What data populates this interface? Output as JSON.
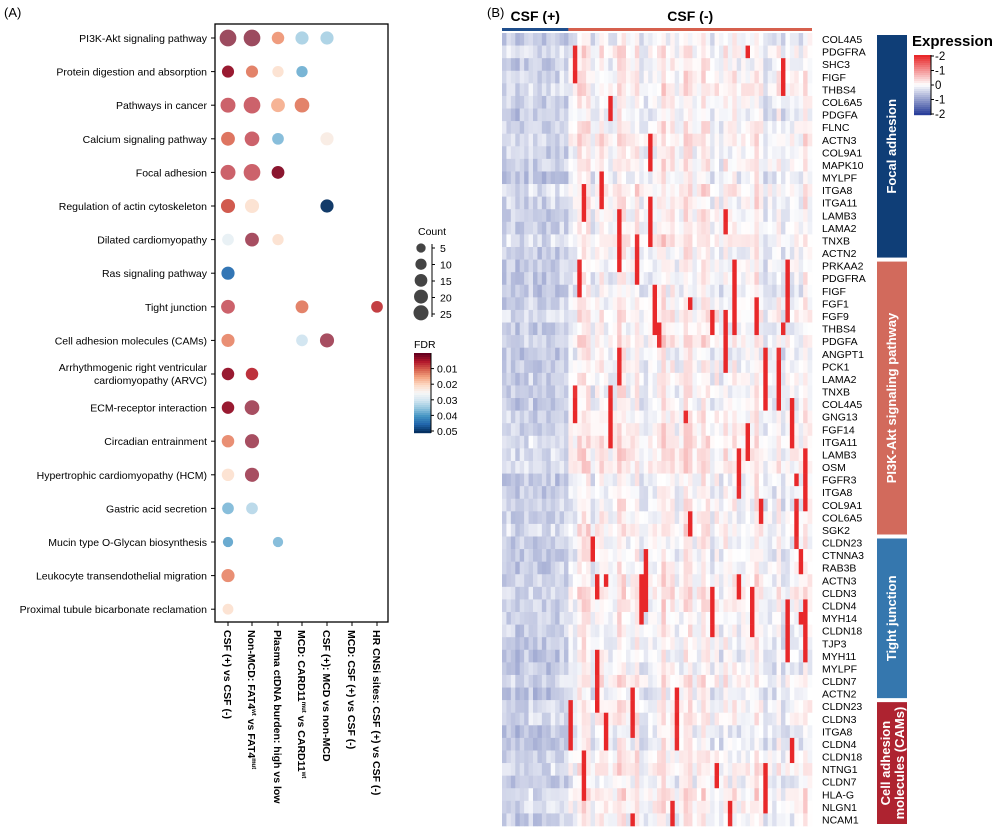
{
  "panels": {
    "a_label": "(A)",
    "b_label": "(B)"
  },
  "chart_data": [
    {
      "type": "scatter",
      "subtype": "dot-plot",
      "pathways": [
        "PI3K-Akt signaling pathway",
        "Protein digestion and absorption",
        "Pathways in cancer",
        "Calcium signaling pathway",
        "Focal adhesion",
        "Regulation of actin cytoskeleton",
        "Dilated cardiomyopathy",
        "Ras signaling pathway",
        "Tight junction",
        "Cell adhesion molecules (CAMs)",
        "Arrhythmogenic right ventricular|cardiomyopathy (ARVC)",
        "ECM-receptor interaction",
        "Circadian entrainment",
        "Hypertrophic cardiomyopathy (HCM)",
        "Gastric acid secretion",
        "Mucin type O-Glycan biosynthesis",
        "Leukocyte transendothelial migration",
        "Proximal tubule bicarbonate reclamation"
      ],
      "comparisons": [
        {
          "text": "CSF (+) vs CSF (-)"
        },
        {
          "text": "Non-MCD: FAT4",
          "sup1": "wt",
          "mid": " vs FAT4",
          "sup2": "mut"
        },
        {
          "text": "Plasma ctDNA burden: high vs low"
        },
        {
          "text": "MCD: CARD11",
          "sup1": "mut",
          "mid": " vs CARD11",
          "sup2": "wt"
        },
        {
          "text": "CSF (+): MCD vs non-MCD"
        },
        {
          "text": "MCD: CSF (+) vs CSF (-)"
        },
        {
          "text": "HR CNSi sites: CSF (+) vs CSF (-)"
        }
      ],
      "points": [
        {
          "row": 0,
          "col": 0,
          "count": 25,
          "fdr": 0.001
        },
        {
          "row": 0,
          "col": 1,
          "count": 25,
          "fdr": 0.001
        },
        {
          "row": 0,
          "col": 2,
          "count": 10,
          "fdr": 0.014
        },
        {
          "row": 0,
          "col": 3,
          "count": 12,
          "fdr": 0.033
        },
        {
          "row": 0,
          "col": 4,
          "count": 12,
          "fdr": 0.033
        },
        {
          "row": 1,
          "col": 0,
          "count": 9,
          "fdr": 0.003
        },
        {
          "row": 1,
          "col": 1,
          "count": 9,
          "fdr": 0.012
        },
        {
          "row": 1,
          "col": 2,
          "count": 7,
          "fdr": 0.021
        },
        {
          "row": 1,
          "col": 3,
          "count": 7,
          "fdr": 0.037
        },
        {
          "row": 2,
          "col": 0,
          "count": 18,
          "fdr": 0.006
        },
        {
          "row": 2,
          "col": 1,
          "count": 25,
          "fdr": 0.006
        },
        {
          "row": 2,
          "col": 2,
          "count": 14,
          "fdr": 0.016
        },
        {
          "row": 2,
          "col": 3,
          "count": 17,
          "fdr": 0.012
        },
        {
          "row": 3,
          "col": 0,
          "count": 14,
          "fdr": 0.011
        },
        {
          "row": 3,
          "col": 1,
          "count": 17,
          "fdr": 0.006
        },
        {
          "row": 3,
          "col": 2,
          "count": 8,
          "fdr": 0.036
        },
        {
          "row": 3,
          "col": 4,
          "count": 12,
          "fdr": 0.023
        },
        {
          "row": 4,
          "col": 0,
          "count": 18,
          "fdr": 0.006
        },
        {
          "row": 4,
          "col": 1,
          "count": 25,
          "fdr": 0.006
        },
        {
          "row": 4,
          "col": 2,
          "count": 11,
          "fdr": 0.002
        },
        {
          "row": 5,
          "col": 0,
          "count": 15,
          "fdr": 0.009
        },
        {
          "row": 5,
          "col": 1,
          "count": 15,
          "fdr": 0.021
        },
        {
          "row": 5,
          "col": 4,
          "count": 12,
          "fdr": 0.05
        },
        {
          "row": 6,
          "col": 0,
          "count": 8,
          "fdr": 0.027
        },
        {
          "row": 6,
          "col": 1,
          "count": 14,
          "fdr": 0.002
        },
        {
          "row": 6,
          "col": 2,
          "count": 7,
          "fdr": 0.021
        },
        {
          "row": 7,
          "col": 0,
          "count": 12,
          "fdr": 0.044
        },
        {
          "row": 8,
          "col": 0,
          "count": 14,
          "fdr": 0.006
        },
        {
          "row": 8,
          "col": 3,
          "count": 11,
          "fdr": 0.012
        },
        {
          "row": 8,
          "col": 6,
          "count": 8,
          "fdr": 0.007
        },
        {
          "row": 9,
          "col": 0,
          "count": 12,
          "fdr": 0.013
        },
        {
          "row": 9,
          "col": 3,
          "count": 8,
          "fdr": 0.03
        },
        {
          "row": 9,
          "col": 4,
          "count": 15,
          "fdr": 0.002
        },
        {
          "row": 10,
          "col": 0,
          "count": 10,
          "fdr": 0.003
        },
        {
          "row": 10,
          "col": 1,
          "count": 10,
          "fdr": 0.006
        },
        {
          "row": 11,
          "col": 0,
          "count": 10,
          "fdr": 0.003
        },
        {
          "row": 11,
          "col": 1,
          "count": 17,
          "fdr": 0.002
        },
        {
          "row": 12,
          "col": 0,
          "count": 10,
          "fdr": 0.013
        },
        {
          "row": 12,
          "col": 1,
          "count": 15,
          "fdr": 0.002
        },
        {
          "row": 13,
          "col": 0,
          "count": 10,
          "fdr": 0.021
        },
        {
          "row": 13,
          "col": 1,
          "count": 15,
          "fdr": 0.002
        },
        {
          "row": 14,
          "col": 0,
          "count": 8,
          "fdr": 0.036
        },
        {
          "row": 14,
          "col": 1,
          "count": 8,
          "fdr": 0.032
        },
        {
          "row": 15,
          "col": 0,
          "count": 5,
          "fdr": 0.038
        },
        {
          "row": 15,
          "col": 2,
          "count": 5,
          "fdr": 0.036
        },
        {
          "row": 16,
          "col": 0,
          "count": 12,
          "fdr": 0.013
        },
        {
          "row": 17,
          "col": 0,
          "count": 6,
          "fdr": 0.021
        }
      ],
      "size_legend": {
        "title": "Count",
        "values": [
          5,
          10,
          15,
          20,
          25
        ],
        "labels": [
          "5",
          "10",
          "15",
          "20",
          "25"
        ]
      },
      "color_legend": {
        "title": "FDR",
        "range": [
          0,
          0.05
        ],
        "ticks": [
          0.01,
          0.02,
          0.03,
          0.04,
          0.05
        ],
        "labels": [
          "0.01",
          "0.02",
          "0.03",
          "0.04",
          "0.05"
        ],
        "low_color": "#67001f",
        "mid_color": "#f7f7f7",
        "high_color": "#053061"
      }
    },
    {
      "type": "heatmap",
      "column_groups": [
        {
          "label": "CSF (+)",
          "color": "#1f4e8c"
        },
        {
          "label": "CSF (-)",
          "color": "#d6604d"
        }
      ],
      "row_groups": [
        {
          "label": "Focal adhesion",
          "color": "#0f3e77",
          "genes": [
            "COL4A5",
            "PDGFRA",
            "SHC3",
            "FIGF",
            "THBS4",
            "COL6A5",
            "PDGFA",
            "FLNC",
            "ACTN3",
            "COL9A1",
            "MAPK10",
            "MYLPF",
            "ITGA8",
            "ITGA11",
            "LAMB3",
            "LAMA2",
            "TNXB",
            "ACTN2"
          ]
        },
        {
          "label": "PI3K-Akt signaling pathway",
          "color": "#d26a5c",
          "genes": [
            "PRKAA2",
            "PDGFRA",
            "FIGF",
            "FGF1",
            "FGF9",
            "THBS4",
            "PDGFA",
            "ANGPT1",
            "PCK1",
            "LAMA2",
            "TNXB",
            "COL4A5",
            "GNG13",
            "FGF14",
            "ITGA11",
            "LAMB3",
            "OSM",
            "FGFR3",
            "ITGA8",
            "COL9A1",
            "COL6A5",
            "SGK2"
          ]
        },
        {
          "label": "Tight junction",
          "color": "#3577ae",
          "genes": [
            "CLDN23",
            "CTNNA3",
            "RAB3B",
            "ACTN3",
            "CLDN3",
            "CLDN4",
            "MYH14",
            "CLDN18",
            "TJP3",
            "MYH11",
            "MYLPF",
            "CLDN7",
            "ACTN2"
          ]
        },
        {
          "label": "Cell adhesion|molecules (CAMs)",
          "color": "#ae2330",
          "genes": [
            "CLDN23",
            "CLDN3",
            "ITGA8",
            "CLDN4",
            "CLDN18",
            "NTNG1",
            "CLDN7",
            "HLA-G",
            "NLGN1",
            "NCAM1"
          ]
        }
      ],
      "color_legend": {
        "title": "Expression",
        "labels": [
          "-2",
          "-1",
          "0",
          "-1",
          "-2"
        ],
        "high_color": "#e8282a",
        "mid_color": "#ffffff",
        "low_color": "#2a3f9a"
      }
    }
  ]
}
